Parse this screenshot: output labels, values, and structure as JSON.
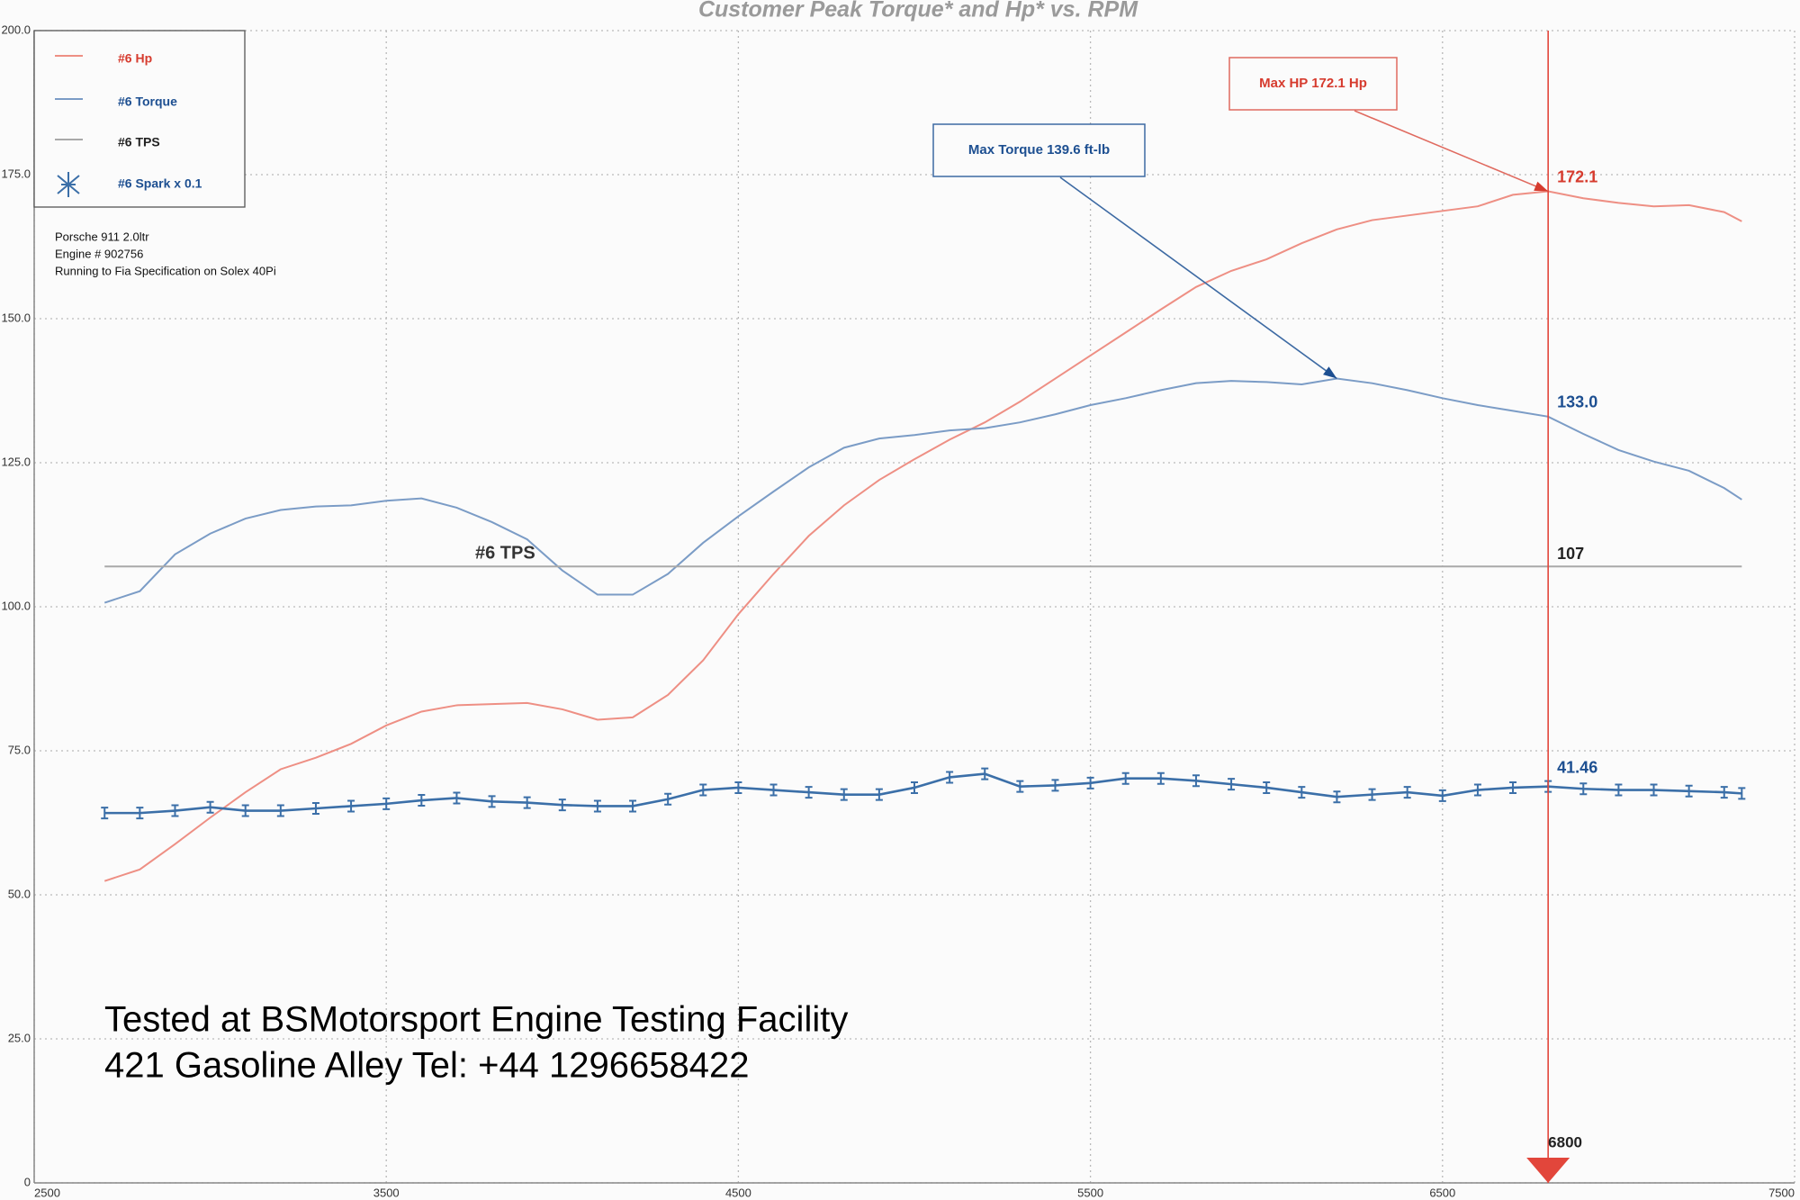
{
  "chart_data": {
    "type": "line",
    "title": "Customer Peak Torque* and Hp* vs. RPM",
    "notes": [
      "Porsche 911 2.0ltr",
      "Engine # 902756",
      "Running to Fia Specification on Solex 40Pi"
    ],
    "footer": [
      "Tested at BSMotorsport Engine Testing Facility",
      "421 Gasoline Alley  Tel: +44 1296658422"
    ],
    "annotations": [
      "Max Torque 139.6 ft-lb",
      "Max HP 172.1 Hp"
    ],
    "line_labels": [
      "#6 TPS"
    ],
    "legend": "upper left",
    "grid": true,
    "xlim": [
      2500,
      7500
    ],
    "xticks": [
      2500,
      3500,
      4500,
      5500,
      6500,
      7500
    ],
    "ylim": [
      0,
      200
    ],
    "yticks": [
      {
        "value": 200,
        "label": "200.0"
      },
      {
        "value": 175,
        "label": "175.0"
      },
      {
        "value": 150,
        "label": "150.0"
      },
      {
        "value": 125,
        "label": "125.0"
      },
      {
        "value": 100,
        "label": "100.0"
      },
      {
        "value": 75,
        "label": "75.0"
      },
      {
        "value": 50,
        "label": "50.0"
      },
      {
        "value": 25,
        "label": "25.0"
      },
      0
    ],
    "x": [
      2700,
      2800,
      2900,
      3000,
      3100,
      3200,
      3300,
      3400,
      3500,
      3600,
      3700,
      3800,
      3900,
      4000,
      4100,
      4200,
      4300,
      4400,
      4500,
      4600,
      4700,
      4800,
      4900,
      5000,
      5100,
      5200,
      5300,
      5400,
      5500,
      5600,
      5700,
      5800,
      5900,
      6000,
      6100,
      6200,
      6300,
      6400,
      6500,
      6600,
      6700,
      6800,
      6900,
      7000,
      7100,
      7200,
      7300,
      7350
    ],
    "series": [
      {
        "name": "#6 Hp",
        "color": "#ee8f84",
        "label_color": "#d63b2e",
        "values": [
          52.4,
          54.4,
          58.8,
          63.4,
          67.8,
          71.8,
          73.8,
          76.2,
          79.4,
          81.8,
          82.9,
          83.1,
          83.3,
          82.2,
          80.4,
          80.8,
          84.7,
          90.7,
          98.7,
          105.7,
          112.3,
          117.6,
          122.0,
          125.6,
          129.0,
          132.0,
          135.6,
          139.6,
          143.6,
          147.6,
          151.6,
          155.5,
          158.3,
          160.3,
          163.1,
          165.5,
          167.1,
          167.9,
          168.7,
          169.5,
          171.5,
          172.1,
          170.9,
          170.1,
          169.5,
          169.7,
          168.5,
          166.9
        ]
      },
      {
        "name": "#6 Torque",
        "color": "#7b9cc6",
        "label_color": "#1d4f91",
        "values": [
          100.7,
          102.7,
          109.1,
          112.7,
          115.3,
          116.8,
          117.4,
          117.6,
          118.4,
          118.8,
          117.2,
          114.7,
          111.7,
          106.3,
          102.1,
          102.1,
          105.7,
          111.1,
          115.7,
          120.0,
          124.2,
          127.6,
          129.2,
          129.8,
          130.6,
          131.0,
          132.0,
          133.4,
          135.0,
          136.2,
          137.6,
          138.8,
          139.2,
          139.0,
          138.6,
          139.6,
          138.8,
          137.6,
          136.2,
          135.0,
          134.0,
          133.0,
          130.0,
          127.2,
          125.2,
          123.6,
          120.6,
          118.6
        ]
      },
      {
        "name": "#6 TPS",
        "color": "#a9a9a9",
        "label_color": "#222222",
        "values": [
          107,
          107,
          107,
          107,
          107,
          107,
          107,
          107,
          107,
          107,
          107,
          107,
          107,
          107,
          107,
          107,
          107,
          107,
          107,
          107,
          107,
          107,
          107,
          107,
          107,
          107,
          107,
          107,
          107,
          107,
          107,
          107,
          107,
          107,
          107,
          107,
          107,
          107,
          107,
          107,
          107,
          107,
          107,
          107,
          107,
          107,
          107,
          107
        ]
      },
      {
        "name": "#6 Spark x 0.1",
        "color": "#3b6fa8",
        "label_color": "#1d4f91",
        "values": [
          64.2,
          64.2,
          64.6,
          65.2,
          64.6,
          64.6,
          65.0,
          65.4,
          65.8,
          66.4,
          66.8,
          66.2,
          66.0,
          65.6,
          65.4,
          65.4,
          66.6,
          68.2,
          68.6,
          68.2,
          67.8,
          67.4,
          67.4,
          68.6,
          70.4,
          71.0,
          68.8,
          69.0,
          69.4,
          70.2,
          70.2,
          69.8,
          69.2,
          68.6,
          67.8,
          67.0,
          67.4,
          67.8,
          67.2,
          68.2,
          68.6,
          68.8,
          68.4,
          68.2,
          68.2,
          68.0,
          67.8,
          67.6
        ]
      }
    ],
    "cursor": {
      "x": 6800,
      "color": "#e2463b",
      "readouts": [
        172.1,
        {
          "value": 133,
          "label": "133.0"
        },
        107,
        41.46
      ]
    }
  }
}
